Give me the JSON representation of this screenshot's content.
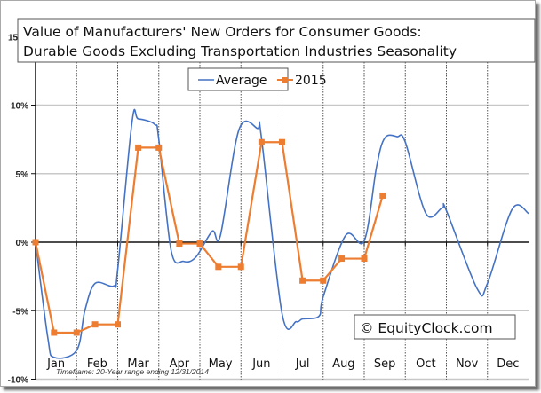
{
  "chart_data": {
    "type": "line",
    "title_lines": [
      "Value of Manufacturers' New Orders for Consumer Goods:",
      "Durable Goods Excluding Transportation Industries Seasonality"
    ],
    "xlabel": "",
    "ylabel": "",
    "categories": [
      "Jan",
      "Feb",
      "Mar",
      "Apr",
      "May",
      "Jun",
      "Jul",
      "Aug",
      "Sep",
      "Oct",
      "Nov",
      "Dec"
    ],
    "ylim": [
      -10,
      15
    ],
    "y_ticks": [
      {
        "value": 15,
        "label": "15"
      },
      {
        "value": 10,
        "label": "10%"
      },
      {
        "value": 5,
        "label": "5%"
      },
      {
        "value": 0,
        "label": "0%"
      },
      {
        "value": -5,
        "label": "-5%"
      },
      {
        "value": -10,
        "label": "-10%"
      }
    ],
    "grid": "horizontal solid at 5% steps, vertical dotted at month boundaries",
    "legend": {
      "placement": "top-center",
      "entries": [
        "Average",
        "2015"
      ]
    },
    "series": [
      {
        "name": "Average",
        "color": "#4472c4",
        "marker": "none",
        "smooth": true,
        "x_month_position": [
          0,
          0.3,
          0.45,
          1.0,
          1.2,
          1.45,
          1.9,
          2.0,
          2.35,
          2.5,
          2.9,
          3.0,
          3.3,
          3.6,
          3.9,
          4.3,
          4.5,
          4.95,
          5.4,
          5.5,
          6.0,
          6.35,
          6.5,
          6.9,
          7.0,
          7.55,
          8.0,
          8.3,
          8.5,
          8.8,
          9.0,
          9.5,
          9.9,
          10.0,
          10.75,
          11.0,
          11.6,
          12.0
        ],
        "values": [
          0,
          -7.0,
          -8.4,
          -7.9,
          -5.0,
          -3.0,
          -3.2,
          -2.0,
          8.8,
          9.0,
          8.6,
          7.5,
          -0.6,
          -1.4,
          -1.1,
          0.8,
          0.5,
          8.2,
          8.3,
          7.6,
          -5.2,
          -5.8,
          -5.6,
          -5.4,
          -4.0,
          0.5,
          0.1,
          5.5,
          7.6,
          7.7,
          7.3,
          2.1,
          2.5,
          2.3,
          -3.4,
          -3.0,
          2.4,
          2.1
        ]
      },
      {
        "name": "2015",
        "color": "#ed7d31",
        "marker": "square",
        "x_month_position": [
          0,
          0.45,
          1.0,
          1.45,
          2.0,
          2.5,
          3.0,
          3.5,
          4.0,
          4.45,
          5.0,
          5.5,
          6.0,
          6.5,
          7.0,
          7.45,
          8.0,
          8.45
        ],
        "values": [
          0,
          -6.6,
          -6.6,
          -6.0,
          -6.0,
          6.9,
          6.9,
          -0.1,
          -0.1,
          -1.8,
          -1.8,
          7.3,
          7.3,
          -2.8,
          -2.8,
          -1.2,
          -1.2,
          3.4
        ]
      }
    ],
    "annotations": [
      {
        "text": "© EquityClock.com",
        "placement": "bottom-right",
        "boxed": true
      },
      {
        "text": "Timeframe: 20-Year range ending 12/31/2014",
        "placement": "bottom-left",
        "italic": true
      }
    ]
  }
}
